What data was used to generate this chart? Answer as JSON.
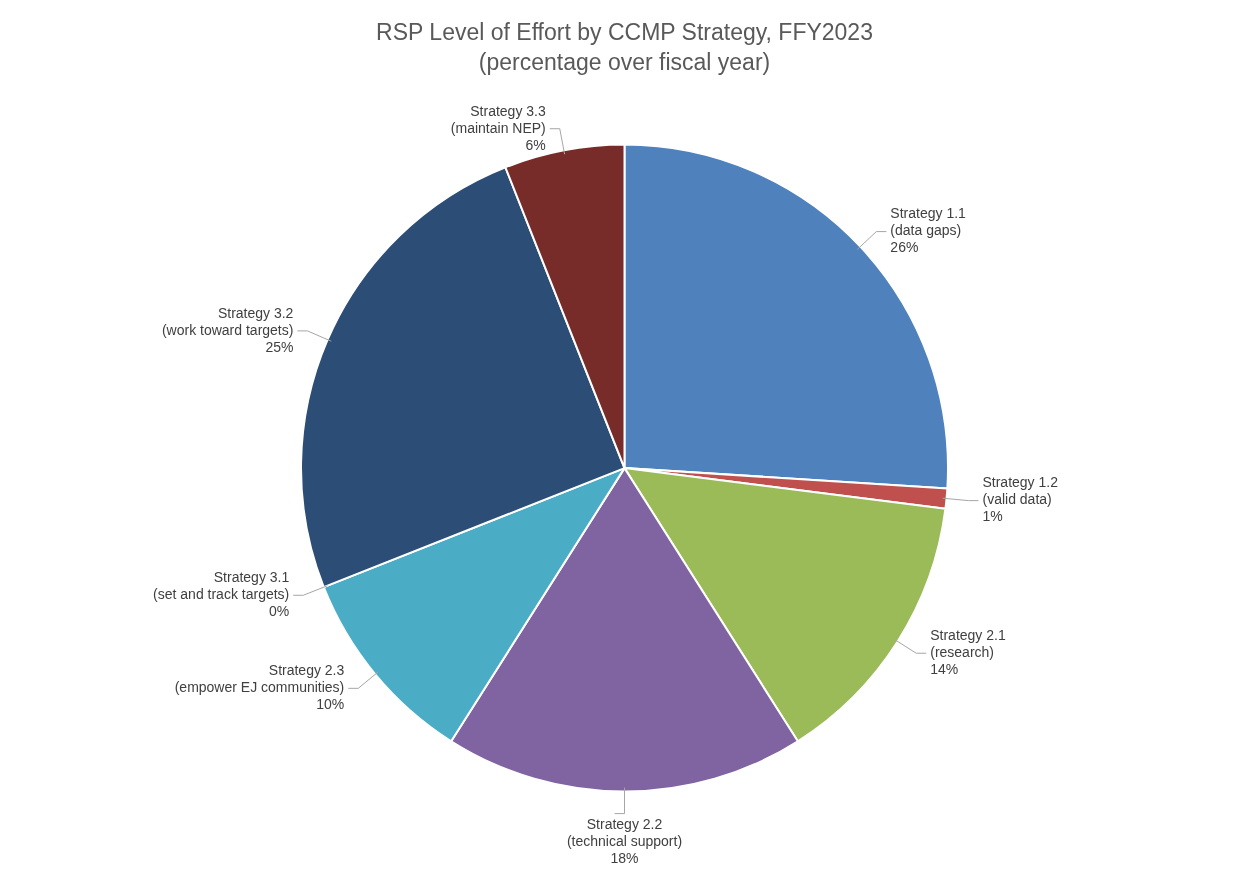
{
  "chart_data": {
    "type": "pie",
    "title": "RSP Level of Effort by CCMP Strategy, FFY2023",
    "subtitle": "(percentage over fiscal year)",
    "categories": [
      "Strategy 1.1 (data gaps)",
      "Strategy 1.2 (valid data)",
      "Strategy 2.1 (research)",
      "Strategy 2.2 (technical support)",
      "Strategy 2.3 (empower EJ communities)",
      "Strategy 3.1 (set and track targets)",
      "Strategy 3.2 (work toward targets)",
      "Strategy 3.3 (maintain NEP)"
    ],
    "values": [
      26,
      1,
      14,
      18,
      10,
      0,
      25,
      6
    ],
    "value_labels": [
      "26%",
      "1%",
      "14%",
      "18%",
      "10%",
      "0%",
      "25%",
      "6%"
    ],
    "colors": [
      "#4f81bd",
      "#c0504d",
      "#9bbb59",
      "#8064a2",
      "#4bacc6",
      "#f79646",
      "#2c4d75",
      "#772c2a"
    ]
  }
}
